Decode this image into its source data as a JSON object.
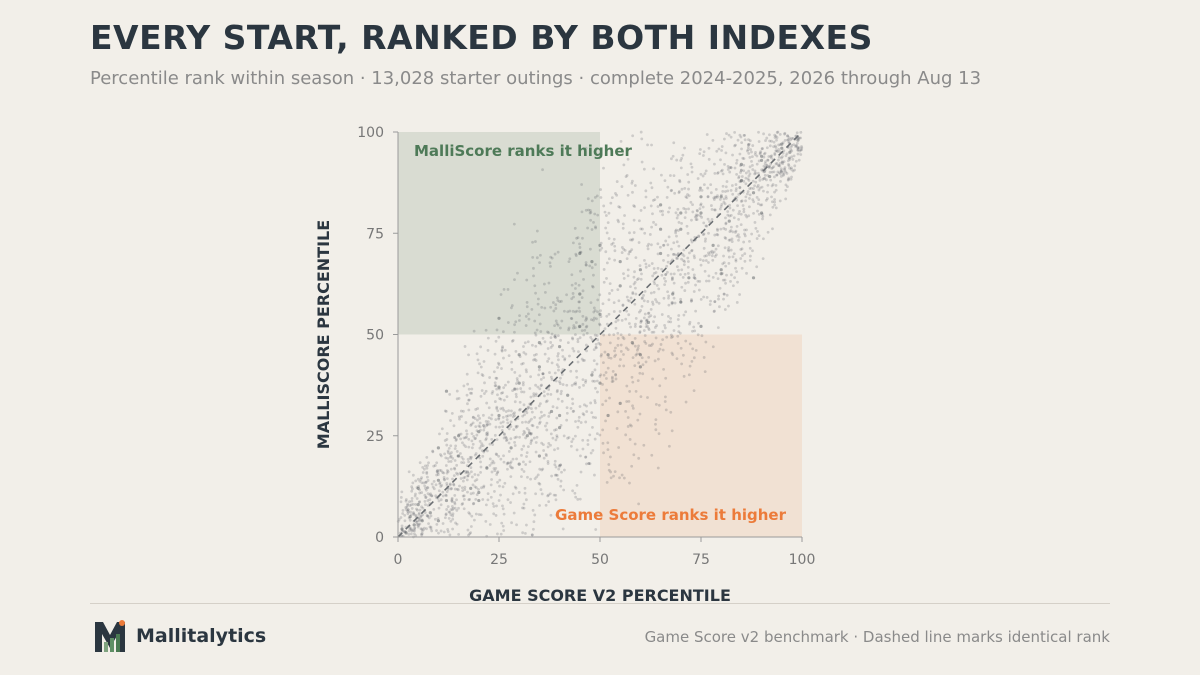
{
  "header": {
    "title": "EVERY START, RANKED BY BOTH INDEXES",
    "subtitle": "Percentile rank within season · 13,028 starter outings · complete 2024-2025, 2026 through Aug 13"
  },
  "footer": {
    "brand": "Mallitalytics",
    "note": "Game Score v2 benchmark · Dashed line marks identical rank"
  },
  "colors": {
    "malli_region": "#5a7a5e",
    "gamescore_region": "#f0a070",
    "malli_text": "#4e7a58",
    "gamescore_text": "#ec7b3a",
    "points": "#4a4f55",
    "diagonal": "#6a6e72"
  },
  "chart_data": {
    "type": "scatter",
    "xlabel": "GAME SCORE V2 PERCENTILE",
    "ylabel": "MALLISCORE PERCENTILE",
    "xlim": [
      0,
      100
    ],
    "ylim": [
      0,
      100
    ],
    "xticks": [
      "0",
      "25",
      "50",
      "75",
      "100"
    ],
    "yticks": [
      "0",
      "25",
      "50",
      "75",
      "100"
    ],
    "grid": false,
    "reference_line": {
      "style": "dashed",
      "from": [
        0,
        0
      ],
      "to": [
        100,
        100
      ]
    },
    "regions": [
      {
        "label": "MalliScore ranks it higher",
        "x": [
          0,
          50
        ],
        "y": [
          50,
          100
        ]
      },
      {
        "label": "Game Score ranks it higher",
        "x": [
          50,
          100
        ],
        "y": [
          0,
          50
        ]
      }
    ],
    "point_count": 13028,
    "series": [
      {
        "distribution": "concentrated along the diagonal y = x; tighter near 0 and 100, widest spread near the middle",
        "x": [
          1,
          2,
          3,
          4,
          5,
          6,
          8,
          10,
          12,
          15,
          18,
          20,
          22,
          25,
          28,
          30,
          32,
          35,
          38,
          40,
          42,
          45,
          48,
          50,
          52,
          55,
          58,
          60,
          62,
          65,
          68,
          70,
          72,
          75,
          78,
          80,
          82,
          85,
          88,
          90,
          92,
          95,
          97,
          99,
          5,
          10,
          15,
          20,
          25,
          30,
          35,
          40,
          45,
          50,
          55,
          60,
          65,
          70,
          75,
          80,
          85,
          90,
          95,
          10,
          20,
          30,
          40,
          50,
          60,
          70,
          80,
          90,
          25,
          35,
          45,
          55,
          65,
          75,
          12,
          48,
          52,
          88
        ],
        "y": [
          2,
          1,
          5,
          3,
          8,
          4,
          6,
          14,
          9,
          20,
          12,
          26,
          17,
          30,
          22,
          38,
          25,
          42,
          31,
          47,
          35,
          52,
          40,
          55,
          45,
          62,
          48,
          66,
          53,
          70,
          60,
          76,
          64,
          80,
          72,
          84,
          78,
          88,
          85,
          93,
          89,
          96,
          95,
          98,
          12,
          4,
          25,
          9,
          37,
          18,
          48,
          27,
          60,
          38,
          68,
          45,
          76,
          58,
          84,
          65,
          92,
          80,
          97,
          22,
          11,
          45,
          30,
          72,
          42,
          80,
          66,
          94,
          54,
          20,
          70,
          33,
          82,
          52,
          36,
          68,
          30,
          64
        ]
      }
    ]
  }
}
